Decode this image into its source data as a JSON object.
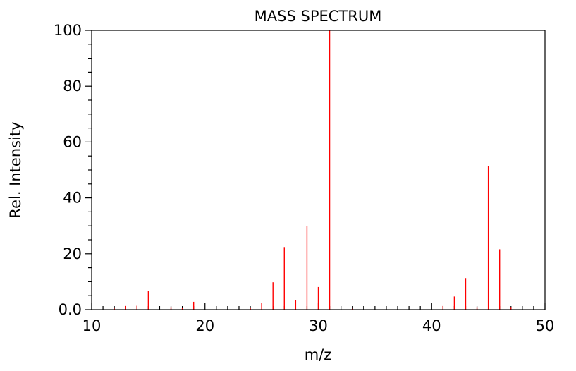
{
  "chart_data": {
    "type": "bar",
    "title": "MASS SPECTRUM",
    "xlabel": "m/z",
    "ylabel": "Rel. Intensity",
    "xlim": [
      10,
      50
    ],
    "ylim": [
      0,
      100
    ],
    "x_ticks": [
      {
        "value": 10,
        "label": "10"
      },
      {
        "value": 20,
        "label": "20"
      },
      {
        "value": 30,
        "label": "30"
      },
      {
        "value": 40,
        "label": "40"
      },
      {
        "value": 50,
        "label": "50"
      }
    ],
    "y_ticks": [
      {
        "value": 0,
        "label": "0.0"
      },
      {
        "value": 20,
        "label": "20"
      },
      {
        "value": 40,
        "label": "40"
      },
      {
        "value": 60,
        "label": "60"
      },
      {
        "value": 80,
        "label": "80"
      },
      {
        "value": 100,
        "label": "100"
      }
    ],
    "peak_color": "#ff0000",
    "x": [
      12,
      13,
      14,
      15,
      17,
      18,
      19,
      24,
      25,
      26,
      27,
      28,
      29,
      30,
      31,
      33,
      41,
      42,
      43,
      44,
      45,
      46,
      47
    ],
    "values": [
      0.4,
      1.3,
      1.4,
      6.6,
      0.9,
      0.7,
      2.8,
      0.7,
      2.4,
      9.8,
      22.4,
      3.5,
      29.8,
      8.1,
      100,
      0.3,
      1.3,
      4.7,
      11.3,
      0.9,
      51.3,
      21.6,
      0.9
    ]
  }
}
